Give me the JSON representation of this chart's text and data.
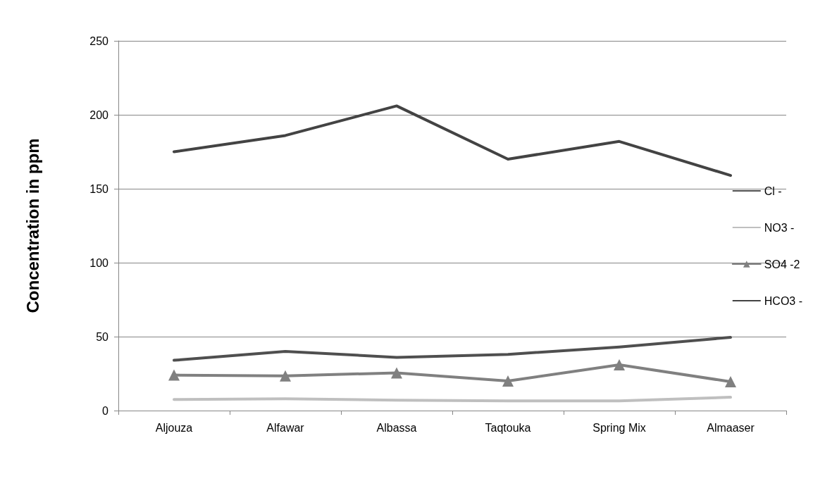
{
  "chart_data": {
    "type": "line",
    "ylabel": "Concentration in ppm",
    "categories": [
      "Aljouza",
      "Alfawar",
      "Albassa",
      "Taqtouka",
      "Spring Mix",
      "Almaaser"
    ],
    "series": [
      {
        "name": "Cl -",
        "color": "#4f4f4f",
        "marker": "none",
        "values": [
          34,
          40,
          36,
          38,
          43,
          49.5
        ]
      },
      {
        "name": "NO3 -",
        "color": "#bfbfbf",
        "marker": "none",
        "values": [
          7.5,
          8,
          7,
          6.5,
          6.5,
          9
        ]
      },
      {
        "name": "SO4 -2",
        "color": "#808080",
        "marker": "triangle",
        "values": [
          24,
          23.5,
          25.5,
          20,
          31,
          19.5
        ]
      },
      {
        "name": "HCO3 -",
        "color": "#434343",
        "marker": "none",
        "values": [
          175,
          186,
          206,
          170,
          182,
          159
        ]
      }
    ],
    "ylim": [
      0,
      250
    ],
    "yticks": [
      0,
      50,
      100,
      150,
      200,
      250
    ],
    "grid": "y",
    "legend": "right",
    "line_style": "solid"
  }
}
